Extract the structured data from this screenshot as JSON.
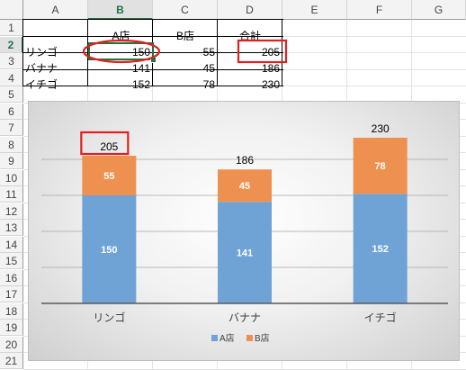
{
  "sheet": {
    "columns": [
      "A",
      "B",
      "C",
      "D",
      "E",
      "F",
      "G"
    ],
    "selected_column": "B",
    "rows": [
      "1",
      "2",
      "3",
      "4",
      "5",
      "6",
      "7",
      "8",
      "9",
      "10",
      "11",
      "12",
      "13",
      "14",
      "15",
      "16",
      "17",
      "18",
      "19",
      "20",
      "21"
    ],
    "selected_row": "2",
    "header": {
      "b": "A店",
      "c": "B店",
      "d": "合計"
    },
    "data": [
      {
        "name": "リンゴ",
        "a": "150",
        "b": "55",
        "total": "205"
      },
      {
        "name": "バナナ",
        "a": "141",
        "b": "45",
        "total": "186"
      },
      {
        "name": "イチゴ",
        "a": "152",
        "b": "78",
        "total": "230"
      }
    ]
  },
  "colors": {
    "series_a": "#6fa3d6",
    "series_b": "#ee9150",
    "highlight": "#e02020",
    "axis": "#595959",
    "grid": "#a6a6a6"
  },
  "chart_data": {
    "type": "bar",
    "stacked": true,
    "categories": [
      "リンゴ",
      "バナナ",
      "イチゴ"
    ],
    "series": [
      {
        "name": "A店",
        "values": [
          150,
          141,
          152
        ]
      },
      {
        "name": "B店",
        "values": [
          55,
          45,
          78
        ]
      }
    ],
    "totals": [
      205,
      186,
      230
    ],
    "ylim": [
      0,
      250
    ],
    "gridlines": [
      50,
      100,
      150,
      200
    ],
    "legend_position": "bottom",
    "highlighted_total_index": 0
  }
}
